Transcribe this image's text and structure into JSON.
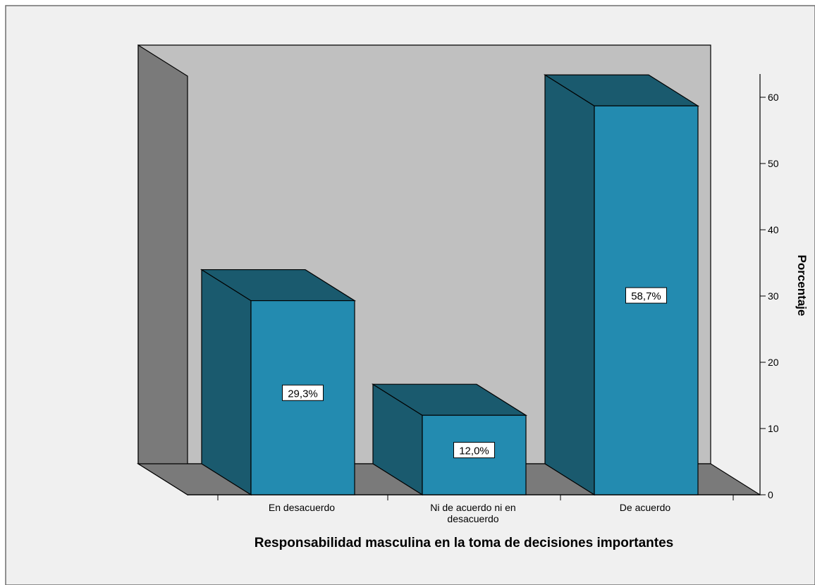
{
  "chart_data": {
    "type": "bar",
    "style": "3d",
    "categories": [
      "En desacuerdo",
      "Ni de acuerdo ni en desacuerdo",
      "De acuerdo"
    ],
    "category_label_lines": [
      [
        "En desacuerdo"
      ],
      [
        "Ni de acuerdo ni en",
        "desacuerdo"
      ],
      [
        "De acuerdo"
      ]
    ],
    "values": [
      29.3,
      12.0,
      58.7
    ],
    "data_labels": [
      "29,3%",
      "12,0%",
      "58,7%"
    ],
    "xlabel": "Responsabilidad masculina en la toma de decisiones importantes",
    "ylabel": "Porcentaje",
    "ylim": [
      0,
      60
    ],
    "yticks": [
      0,
      10,
      20,
      30,
      40,
      50,
      60
    ],
    "y_axis_position": "right",
    "grid": false,
    "legend": "none",
    "colors": {
      "bar_front": "#238BB0",
      "bar_side": "#1A5A6E",
      "bar_top": "#1A5A6E",
      "back_wall": "#C0C0C0",
      "left_wall": "#7A7A7A",
      "floor": "#7A7A7A",
      "frame_border": "#6E6E6E"
    }
  }
}
